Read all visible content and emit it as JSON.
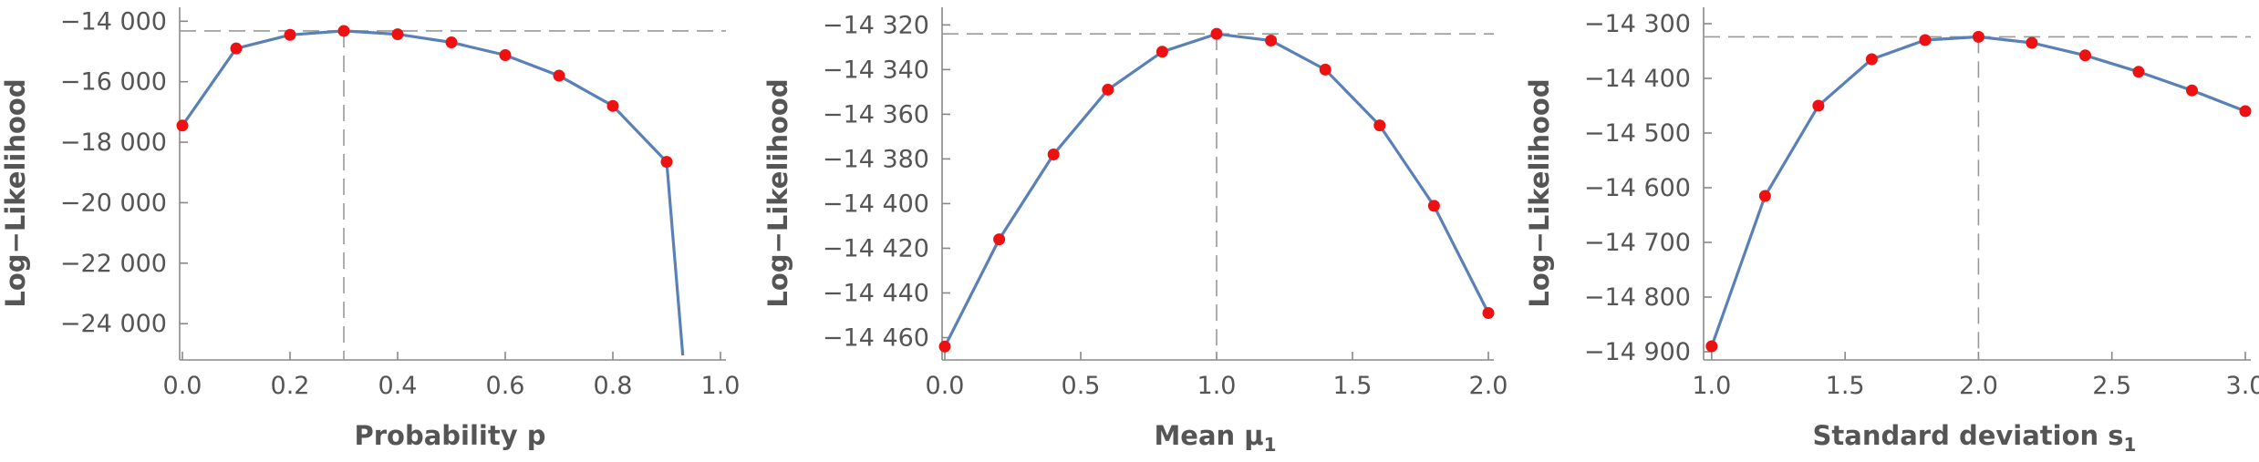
{
  "colors": {
    "line": "#5a80b8",
    "points": "#ee1111",
    "reference": "#999999",
    "text": "#555555"
  },
  "chart_data": [
    {
      "type": "line",
      "xlabel": "Probability p",
      "ylabel": "Log−Likelihood",
      "xlim": [
        0,
        1.0
      ],
      "ylim": [
        -25200,
        -13900
      ],
      "xticks": [
        0.0,
        0.2,
        0.4,
        0.6,
        0.8,
        1.0
      ],
      "xtick_labels": [
        "0.0",
        "0.2",
        "0.4",
        "0.6",
        "0.8",
        "1.0"
      ],
      "yticks": [
        -14000,
        -16000,
        -18000,
        -20000,
        -22000,
        -24000
      ],
      "ytick_labels": [
        "−14 000",
        "−16 000",
        "−18 000",
        "−20 000",
        "−22 000",
        "−24 000"
      ],
      "x": [
        0.0,
        0.1,
        0.2,
        0.3,
        0.4,
        0.5,
        0.6,
        0.7,
        0.8,
        0.9
      ],
      "y": [
        -17450,
        -14900,
        -14450,
        -14320,
        -14430,
        -14700,
        -15120,
        -15800,
        -16800,
        -18650
      ],
      "line_tail": {
        "x": [
          0.93
        ],
        "y": [
          -25050
        ]
      },
      "ref_x": 0.3,
      "ref_y": -14320
    },
    {
      "type": "line",
      "xlabel": "Mean μ1",
      "ylabel": "Log−Likelihood",
      "xlim": [
        0,
        2.0
      ],
      "ylim": [
        -14470,
        -14317
      ],
      "xticks": [
        0.0,
        0.5,
        1.0,
        1.5,
        2.0
      ],
      "xtick_labels": [
        "0.0",
        "0.5",
        "1.0",
        "1.5",
        "2.0"
      ],
      "yticks": [
        -14320,
        -14340,
        -14360,
        -14380,
        -14400,
        -14420,
        -14440,
        -14460
      ],
      "ytick_labels": [
        "−14 320",
        "−14 340",
        "−14 360",
        "−14 380",
        "−14 400",
        "−14 420",
        "−14 440",
        "−14 460"
      ],
      "x": [
        0.0,
        0.2,
        0.4,
        0.6,
        0.8,
        1.0,
        1.2,
        1.4,
        1.6,
        1.8,
        2.0
      ],
      "y": [
        -14464,
        -14416,
        -14378,
        -14349,
        -14332,
        -14324,
        -14327,
        -14340,
        -14365,
        -14401,
        -14449
      ],
      "ref_x": 1.0,
      "ref_y": -14324
    },
    {
      "type": "line",
      "xlabel": "Standard deviation s1",
      "ylabel": "Log−Likelihood",
      "xlim": [
        0.98,
        3.0
      ],
      "ylim": [
        -14915,
        -14290
      ],
      "xticks": [
        1.0,
        1.5,
        2.0,
        2.5,
        3.0
      ],
      "xtick_labels": [
        "1.0",
        "1.5",
        "2.0",
        "2.5",
        "3.0"
      ],
      "yticks": [
        -14300,
        -14400,
        -14500,
        -14600,
        -14700,
        -14800,
        -14900
      ],
      "ytick_labels": [
        "−14 300",
        "−14 400",
        "−14 500",
        "−14 600",
        "−14 700",
        "−14 800",
        "−14 900"
      ],
      "x": [
        1.0,
        1.2,
        1.4,
        1.6,
        1.8,
        2.0,
        2.2,
        2.4,
        2.6,
        2.8,
        3.0
      ],
      "y": [
        -14890,
        -14615,
        -14450,
        -14365,
        -14330,
        -14324,
        -14335,
        -14358,
        -14388,
        -14422,
        -14460
      ],
      "ref_x": 2.0,
      "ref_y": -14324
    }
  ]
}
